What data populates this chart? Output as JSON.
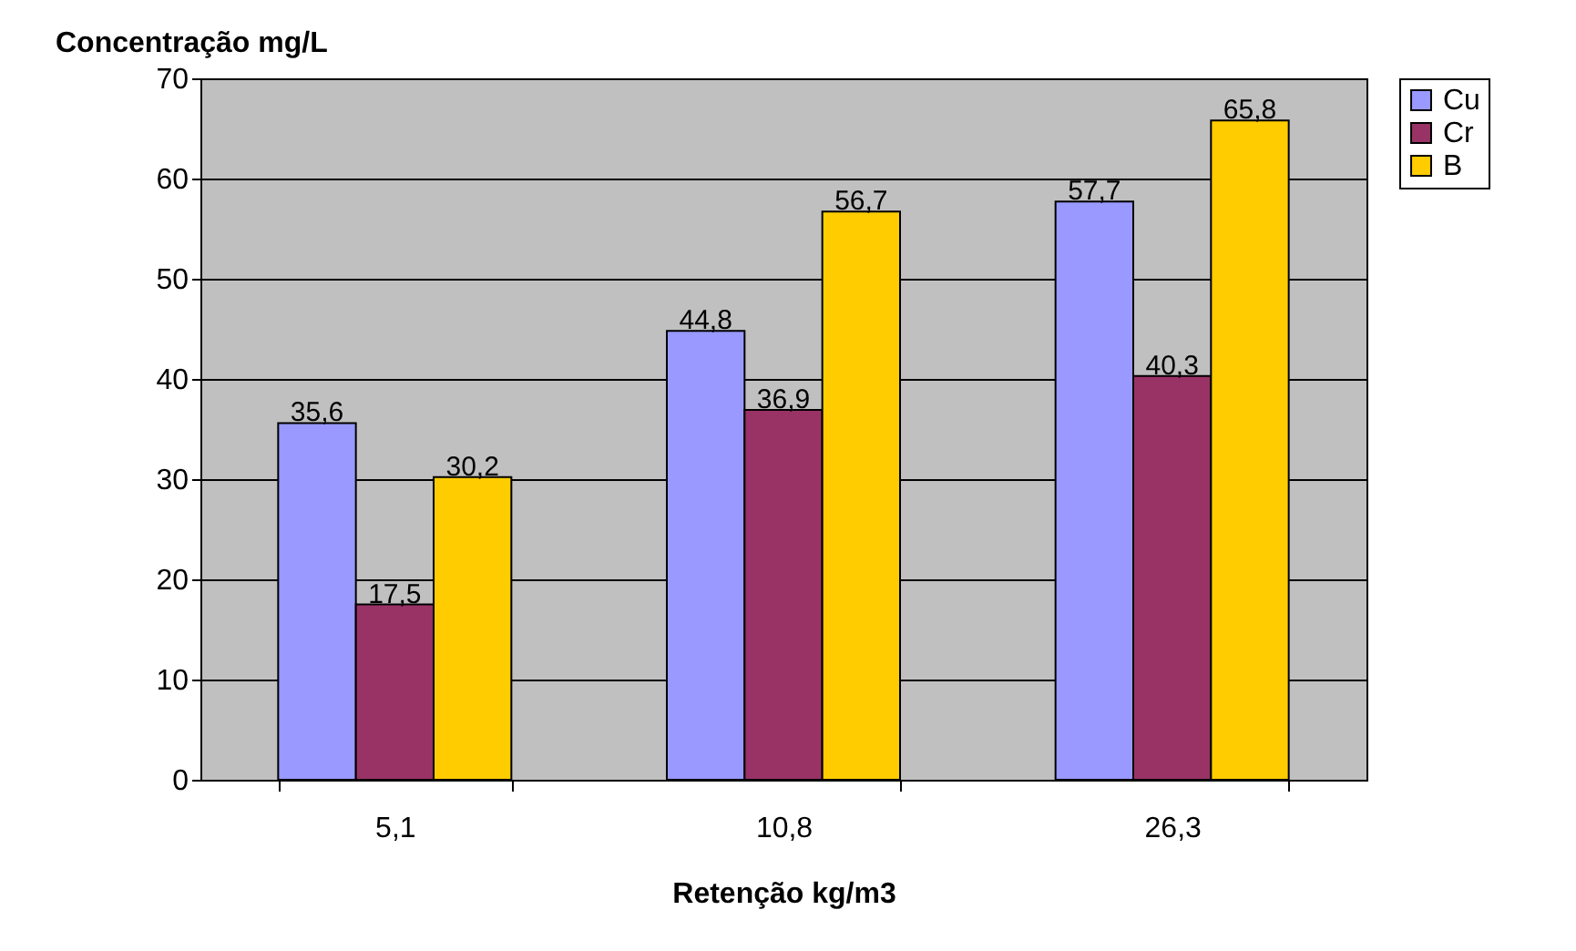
{
  "chart_data": {
    "type": "bar",
    "xlabel": "Retenção kg/m3",
    "ylabel": "Concentração mg/L",
    "categories": [
      "5,1",
      "10,8",
      "26,3"
    ],
    "series": [
      {
        "name": "Cu",
        "color": "#9999ff",
        "values": [
          35.6,
          44.8,
          57.7
        ],
        "value_labels": [
          "35,6",
          "44,8",
          "57,7"
        ]
      },
      {
        "name": "Cr",
        "color": "#993366",
        "values": [
          17.5,
          36.9,
          40.3
        ],
        "value_labels": [
          "17,5",
          "36,9",
          "40,3"
        ]
      },
      {
        "name": "B",
        "color": "#ffcc00",
        "values": [
          30.2,
          56.7,
          65.8
        ],
        "value_labels": [
          "30,2",
          "56,7",
          "65,8"
        ]
      }
    ],
    "ylim": [
      0,
      70
    ],
    "yticks": [
      0,
      10,
      20,
      30,
      40,
      50,
      60,
      70
    ],
    "grid": "y",
    "legend": "right"
  }
}
